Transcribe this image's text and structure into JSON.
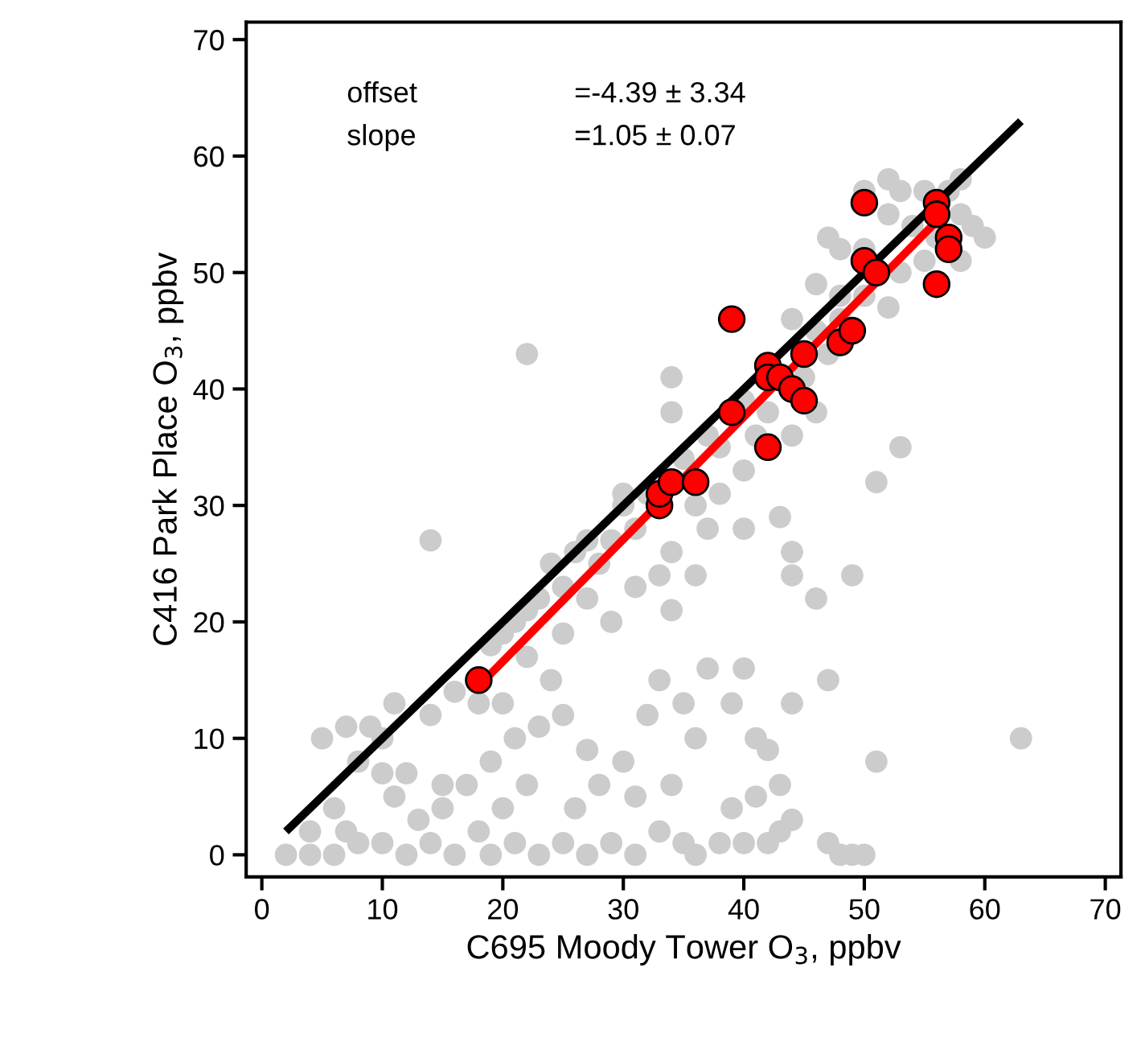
{
  "chart_data": {
    "type": "scatter",
    "xlabel": "C695 Moody Tower O$_{3}$, ppbv",
    "ylabel": "C416 Park Place O$_{3}$, ppbv",
    "annotations": [
      "offset",
      "=-4.39 ± 3.34",
      "slope",
      "=1.05 ± 0.07"
    ],
    "xlim": [
      -1.3,
      71.3
    ],
    "ylim": [
      -1.9,
      71.5
    ],
    "xticks": [
      0,
      10,
      20,
      30,
      40,
      50,
      60,
      70
    ],
    "yticks": [
      0,
      10,
      20,
      30,
      40,
      50,
      60,
      70
    ],
    "grid": false,
    "legend": false,
    "series": [
      {
        "color": "#cccccc",
        "marker": "circle",
        "x": [
          50,
          52,
          53,
          55,
          57,
          58,
          59,
          60,
          58,
          54,
          52,
          50,
          48,
          47,
          46,
          48,
          50,
          52,
          53,
          55,
          56,
          58,
          46,
          47,
          48,
          44,
          45,
          46,
          44,
          42,
          40,
          41,
          38,
          40,
          37,
          36,
          38,
          35,
          30,
          32,
          31,
          29,
          27,
          28,
          26,
          25,
          23,
          22,
          21,
          20,
          19,
          22,
          14,
          24,
          34,
          34,
          30,
          33,
          34,
          36,
          37,
          40,
          43,
          44,
          44,
          46,
          51,
          53,
          49,
          47,
          44,
          40,
          37,
          34,
          31,
          29,
          27,
          25,
          24,
          22,
          20,
          18,
          16,
          14,
          11,
          10,
          9,
          7,
          5,
          8,
          10,
          12,
          15,
          17,
          19,
          21,
          23,
          25,
          27,
          28,
          30,
          32,
          33,
          35,
          36,
          39,
          41,
          42,
          43,
          41,
          39,
          44,
          43,
          42,
          40,
          47,
          48,
          49,
          50,
          36,
          38,
          51,
          63,
          2,
          4,
          6,
          8,
          10,
          12,
          14,
          16,
          18,
          19,
          21,
          23,
          25,
          27,
          29,
          31,
          33,
          35,
          13,
          15,
          11,
          6,
          4,
          20,
          22,
          26,
          31,
          34,
          7
        ],
        "values": [
          57,
          58,
          57,
          57,
          57,
          58,
          54,
          53,
          55,
          54,
          55,
          52,
          52,
          53,
          49,
          48,
          48,
          47,
          50,
          51,
          53,
          51,
          45,
          43,
          46,
          46,
          41,
          38,
          36,
          38,
          39,
          36,
          35,
          33,
          36,
          30,
          31,
          34,
          31,
          31,
          28,
          27,
          27,
          25,
          26,
          23,
          22,
          21,
          20,
          19,
          18,
          43,
          27,
          25,
          41,
          38,
          30,
          24,
          26,
          24,
          28,
          28,
          29,
          24,
          26,
          22,
          32,
          35,
          24,
          15,
          13,
          16,
          16,
          21,
          23,
          20,
          22,
          19,
          15,
          17,
          13,
          13,
          14,
          12,
          13,
          10,
          11,
          11,
          10,
          8,
          7,
          7,
          6,
          6,
          8,
          10,
          11,
          12,
          9,
          6,
          8,
          12,
          15,
          13,
          10,
          13,
          10,
          9,
          6,
          5,
          4,
          3,
          2,
          1,
          1,
          1,
          0,
          0,
          0,
          0,
          1,
          8,
          10,
          0,
          0,
          0,
          1,
          1,
          0,
          1,
          0,
          2,
          0,
          1,
          0,
          1,
          0,
          1,
          0,
          2,
          1,
          3,
          4,
          5,
          4,
          2,
          4,
          6,
          4,
          5,
          6,
          2
        ]
      },
      {
        "type": "line",
        "marker": "none",
        "color": "#000000",
        "x": [
          2,
          63
        ],
        "values": [
          2,
          63
        ]
      },
      {
        "type": "line",
        "marker": "none",
        "color": "#ff0000",
        "x": [
          18,
          56
        ],
        "values": [
          14.5,
          54.4
        ]
      },
      {
        "type": "scatter",
        "marker": "circle",
        "color": "#ff0000",
        "x": [
          18,
          33,
          33,
          34,
          36,
          39,
          39,
          42,
          42,
          42,
          43,
          44,
          45,
          45,
          48,
          49,
          50,
          50,
          51,
          56,
          56,
          57,
          57,
          56
        ],
        "values": [
          15,
          30,
          31,
          32,
          32,
          38,
          46,
          35,
          42,
          41,
          41,
          40,
          39,
          43,
          44,
          45,
          51,
          56,
          50,
          56,
          55,
          53,
          52,
          49
        ]
      }
    ]
  }
}
